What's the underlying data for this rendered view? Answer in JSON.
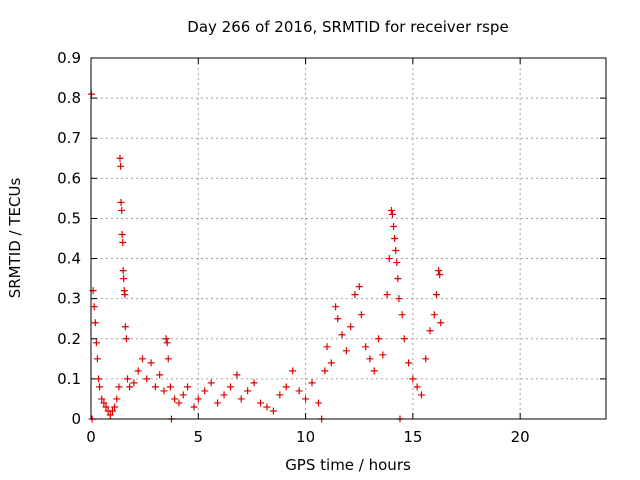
{
  "chart_data": {
    "type": "scatter",
    "title": "Day 266 of 2016, SRMTID for receiver rspe",
    "xlabel": "GPS time / hours",
    "ylabel": "SRMTID / TECUs",
    "xlim": [
      0,
      24
    ],
    "ylim": [
      0,
      0.9
    ],
    "x_ticks": [
      "0",
      "5",
      "10",
      "15",
      "20"
    ],
    "y_ticks": [
      "0",
      "0.1",
      "0.2",
      "0.3",
      "0.4",
      "0.5",
      "0.6",
      "0.7",
      "0.8",
      "0.9"
    ],
    "grid": true,
    "marker": "+",
    "marker_color": "#e00000",
    "series": [
      {
        "points": [
          [
            0.02,
            0.81
          ],
          [
            0.05,
            0.0
          ],
          [
            0.1,
            0.32
          ],
          [
            0.15,
            0.28
          ],
          [
            0.2,
            0.24
          ],
          [
            0.25,
            0.19
          ],
          [
            0.3,
            0.15
          ],
          [
            0.35,
            0.1
          ],
          [
            0.4,
            0.08
          ],
          [
            0.5,
            0.05
          ],
          [
            0.6,
            0.04
          ],
          [
            0.7,
            0.03
          ],
          [
            0.8,
            0.02
          ],
          [
            0.9,
            0.01
          ],
          [
            1.0,
            0.02
          ],
          [
            1.1,
            0.03
          ],
          [
            1.2,
            0.05
          ],
          [
            1.3,
            0.08
          ],
          [
            1.35,
            0.65
          ],
          [
            1.38,
            0.63
          ],
          [
            1.4,
            0.54
          ],
          [
            1.43,
            0.52
          ],
          [
            1.45,
            0.46
          ],
          [
            1.48,
            0.44
          ],
          [
            1.5,
            0.37
          ],
          [
            1.52,
            0.35
          ],
          [
            1.55,
            0.32
          ],
          [
            1.58,
            0.31
          ],
          [
            1.6,
            0.23
          ],
          [
            1.65,
            0.2
          ],
          [
            1.7,
            0.1
          ],
          [
            1.8,
            0.08
          ],
          [
            2.0,
            0.09
          ],
          [
            2.2,
            0.12
          ],
          [
            2.4,
            0.15
          ],
          [
            2.6,
            0.1
          ],
          [
            2.8,
            0.14
          ],
          [
            3.0,
            0.08
          ],
          [
            3.2,
            0.11
          ],
          [
            3.4,
            0.07
          ],
          [
            3.5,
            0.2
          ],
          [
            3.55,
            0.19
          ],
          [
            3.6,
            0.15
          ],
          [
            3.7,
            0.08
          ],
          [
            3.75,
            0.0
          ],
          [
            3.9,
            0.05
          ],
          [
            4.1,
            0.04
          ],
          [
            4.3,
            0.06
          ],
          [
            4.5,
            0.08
          ],
          [
            4.8,
            0.03
          ],
          [
            5.0,
            0.05
          ],
          [
            5.3,
            0.07
          ],
          [
            5.6,
            0.09
          ],
          [
            5.9,
            0.04
          ],
          [
            6.2,
            0.06
          ],
          [
            6.5,
            0.08
          ],
          [
            6.8,
            0.11
          ],
          [
            7.0,
            0.05
          ],
          [
            7.3,
            0.07
          ],
          [
            7.6,
            0.09
          ],
          [
            7.9,
            0.04
          ],
          [
            8.2,
            0.03
          ],
          [
            8.5,
            0.02
          ],
          [
            8.8,
            0.06
          ],
          [
            9.1,
            0.08
          ],
          [
            9.4,
            0.12
          ],
          [
            9.7,
            0.07
          ],
          [
            10.0,
            0.05
          ],
          [
            10.3,
            0.09
          ],
          [
            10.6,
            0.04
          ],
          [
            10.75,
            0.0
          ],
          [
            10.9,
            0.12
          ],
          [
            11.0,
            0.18
          ],
          [
            11.2,
            0.14
          ],
          [
            11.4,
            0.28
          ],
          [
            11.5,
            0.25
          ],
          [
            11.7,
            0.21
          ],
          [
            11.9,
            0.17
          ],
          [
            12.1,
            0.23
          ],
          [
            12.3,
            0.31
          ],
          [
            12.5,
            0.33
          ],
          [
            12.6,
            0.26
          ],
          [
            12.8,
            0.18
          ],
          [
            13.0,
            0.15
          ],
          [
            13.2,
            0.12
          ],
          [
            13.4,
            0.2
          ],
          [
            13.6,
            0.16
          ],
          [
            13.8,
            0.31
          ],
          [
            13.9,
            0.4
          ],
          [
            14.0,
            0.52
          ],
          [
            14.05,
            0.51
          ],
          [
            14.1,
            0.48
          ],
          [
            14.15,
            0.45
          ],
          [
            14.2,
            0.42
          ],
          [
            14.25,
            0.39
          ],
          [
            14.3,
            0.35
          ],
          [
            14.35,
            0.3
          ],
          [
            14.4,
            0.0
          ],
          [
            14.5,
            0.26
          ],
          [
            14.6,
            0.2
          ],
          [
            14.8,
            0.14
          ],
          [
            15.0,
            0.1
          ],
          [
            15.2,
            0.08
          ],
          [
            15.4,
            0.06
          ],
          [
            15.6,
            0.15
          ],
          [
            15.8,
            0.22
          ],
          [
            16.0,
            0.26
          ],
          [
            16.1,
            0.31
          ],
          [
            16.2,
            0.37
          ],
          [
            16.25,
            0.36
          ],
          [
            16.3,
            0.24
          ]
        ]
      }
    ]
  }
}
